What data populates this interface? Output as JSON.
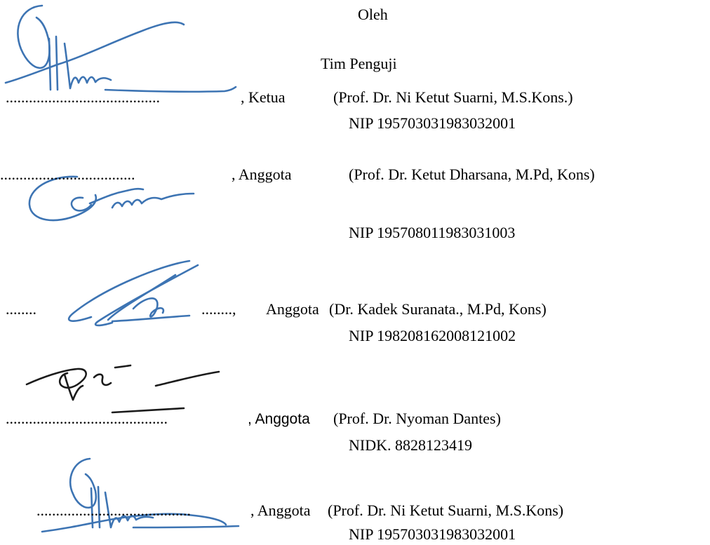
{
  "header": {
    "oleh": "Oleh",
    "tim": "Tim Penguji"
  },
  "examiners": [
    {
      "dots": "........................................",
      "role": ", Ketua",
      "name": "(Prof. Dr. Ni Ketut Suarni, M.S.Kons.)",
      "id": "NIP 195703031983032001"
    },
    {
      "dots": "...................................",
      "role": ", Anggota",
      "name": "(Prof. Dr. Ketut Dharsana, M.Pd, Kons)",
      "id": "NIP 195708011983031003"
    },
    {
      "dots_left": "........",
      "dots_right": "........,",
      "role": "Anggota",
      "name": "(Dr. Kadek Suranata., M.Pd, Kons)",
      "id": "NIP 198208162008121002"
    },
    {
      "dots": "..........................................",
      "role": ", Anggota",
      "name": "(Prof. Dr. Nyoman Dantes)",
      "id": "NIDK. 8828123419"
    },
    {
      "dots": "........................................",
      "role": ", Anggota",
      "name": "(Prof. Dr. Ni Ketut Suarni, M.S.Kons)",
      "id": "NIP 195703031983032001"
    }
  ],
  "ink_colors": {
    "blue": "#3d74b3",
    "dark": "#1b1b1b"
  }
}
